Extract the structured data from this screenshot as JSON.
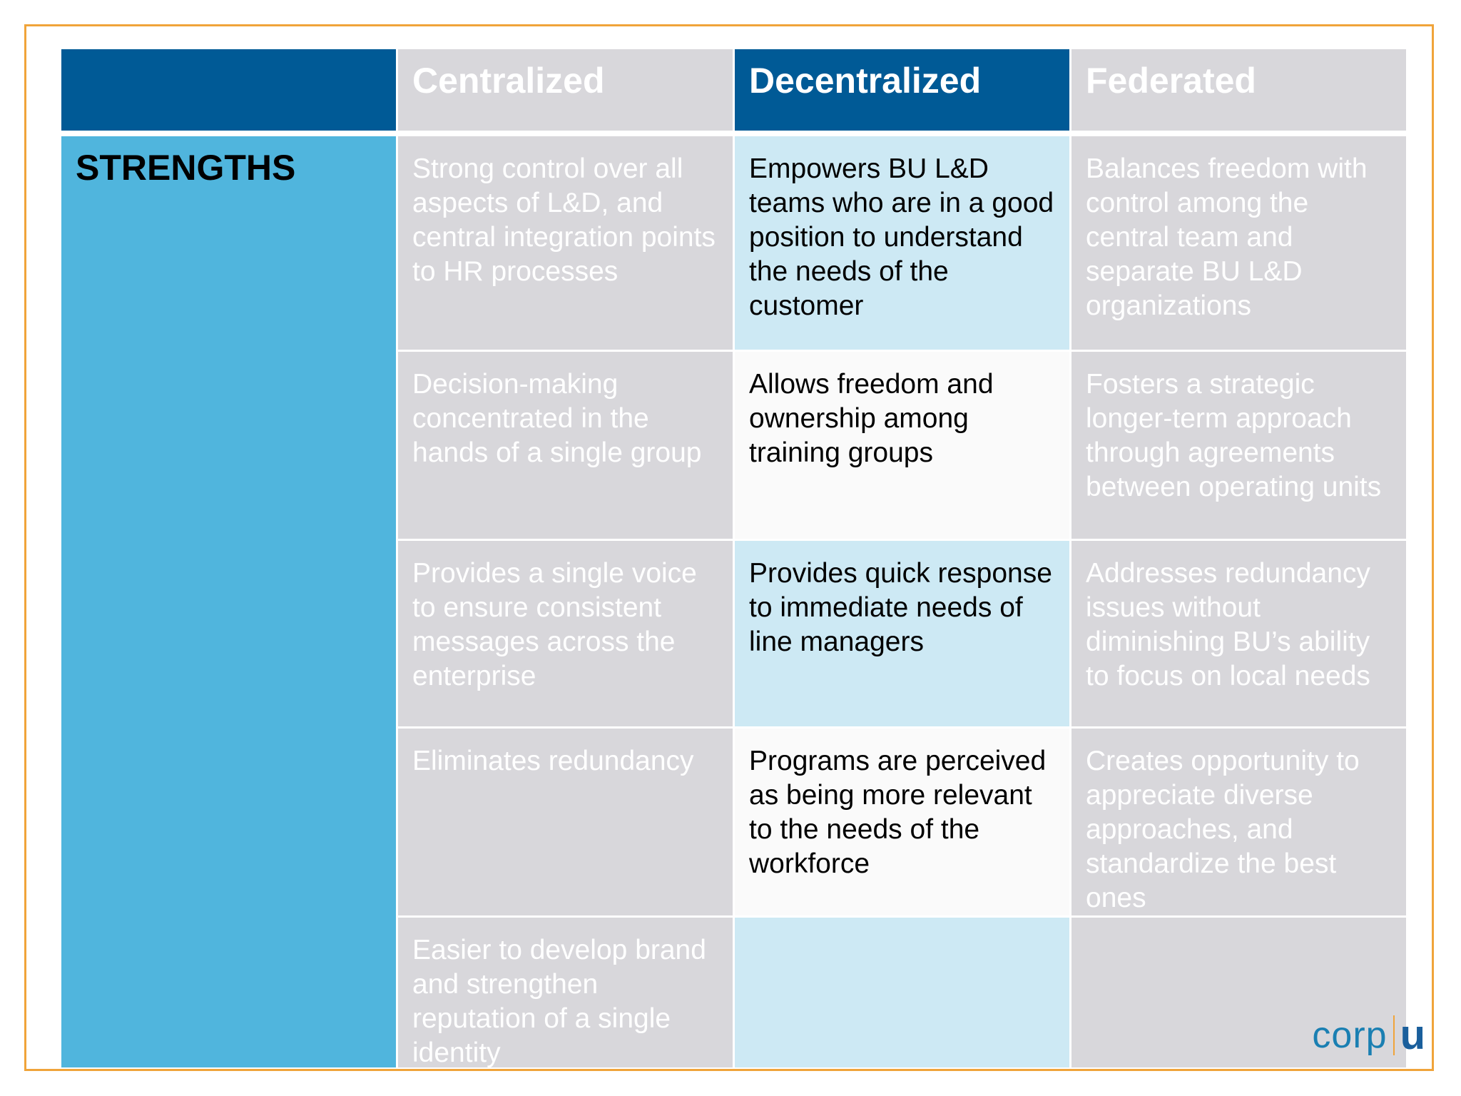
{
  "table": {
    "columns": [
      "Centralized",
      "Decentralized",
      "Federated"
    ],
    "row_label": "STRENGTHS",
    "rows": [
      {
        "centralized": "Strong control over all aspects of L&D, and central integration points to HR processes",
        "decentralized": "Empowers BU L&D teams who are in a good position to understand the needs of the customer",
        "federated": "Balances freedom with control among the central team and separate BU L&D organizations"
      },
      {
        "centralized": "Decision-making concentrated in the hands of a single group",
        "decentralized": "Allows freedom and ownership among training groups",
        "federated": "Fosters a strategic longer-term approach through agreements between operating units"
      },
      {
        "centralized": "Provides a single voice to ensure consistent messages across the enterprise",
        "decentralized": "Provides quick response to immediate needs of line managers",
        "federated": "Addresses redundancy issues without diminishing BU’s ability to focus on local needs"
      },
      {
        "centralized": "Eliminates redundancy",
        "decentralized": "Programs are perceived as being more relevant to the needs of the workforce",
        "federated": "Creates opportunity to appreciate diverse approaches, and standardize the best ones"
      },
      {
        "centralized": "Easier to develop brand and strengthen reputation of a single identity",
        "decentralized": "",
        "federated": ""
      }
    ]
  },
  "logo": {
    "left": "corp",
    "right": "u"
  },
  "colors": {
    "header_blue": "#005a96",
    "label_blue": "#50b5dd",
    "highlight_light_blue": "#cde9f4",
    "dim_gray": "#d8d7db",
    "frame_orange": "#f0a43a"
  }
}
